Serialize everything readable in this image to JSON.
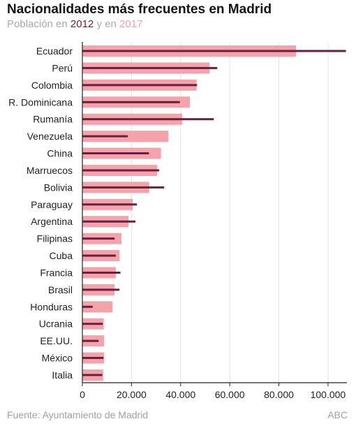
{
  "header": {
    "title": "Nacionalidades más frecuentes en Madrid",
    "subtitle": {
      "prefix": "Población en ",
      "year_a": "2012",
      "middle": " y en ",
      "year_b": "2017"
    }
  },
  "footer": {
    "source": "Fuente: Ayuntamiento de Madrid",
    "brand": "ABC"
  },
  "colors": {
    "series_2017_bar": "#f4a3ab",
    "series_2012_line": "#6a1f40",
    "grid": "#e4e4e4",
    "axis": "#222222",
    "label_text": "#222222"
  },
  "chart_data": {
    "type": "bar",
    "orientation": "horizontal",
    "categories": [
      "Ecuador",
      "Perú",
      "Colombia",
      "R. Dominicana",
      "Rumanía",
      "Venezuela",
      "China",
      "Marruecos",
      "Bolivia",
      "Paraguay",
      "Argentina",
      "Filipinas",
      "Cuba",
      "Francia",
      "Brasil",
      "Honduras",
      "Ucrania",
      "EE.UU.",
      "México",
      "Italia"
    ],
    "series": [
      {
        "name": "2012",
        "style": "line",
        "values": [
          107300,
          54900,
          46700,
          39700,
          53500,
          18500,
          27100,
          31300,
          33300,
          22200,
          21600,
          13100,
          13600,
          15500,
          15100,
          4200,
          8300,
          6600,
          8600,
          8100
        ]
      },
      {
        "name": "2017",
        "style": "bar",
        "values": [
          87000,
          51800,
          46500,
          43800,
          40600,
          35000,
          32000,
          30400,
          27200,
          20500,
          18800,
          15900,
          15100,
          13600,
          13100,
          12200,
          8700,
          8800,
          8800,
          8500
        ]
      }
    ],
    "xticks": {
      "values": [
        0,
        20000,
        40000,
        60000,
        80000,
        100000
      ],
      "labels": [
        "0",
        "20.000",
        "40.000",
        "60.000",
        "80.000",
        "100.000"
      ]
    },
    "xlim": [
      0,
      107700
    ],
    "grid": "vertical",
    "xlabel": "",
    "ylabel": ""
  }
}
